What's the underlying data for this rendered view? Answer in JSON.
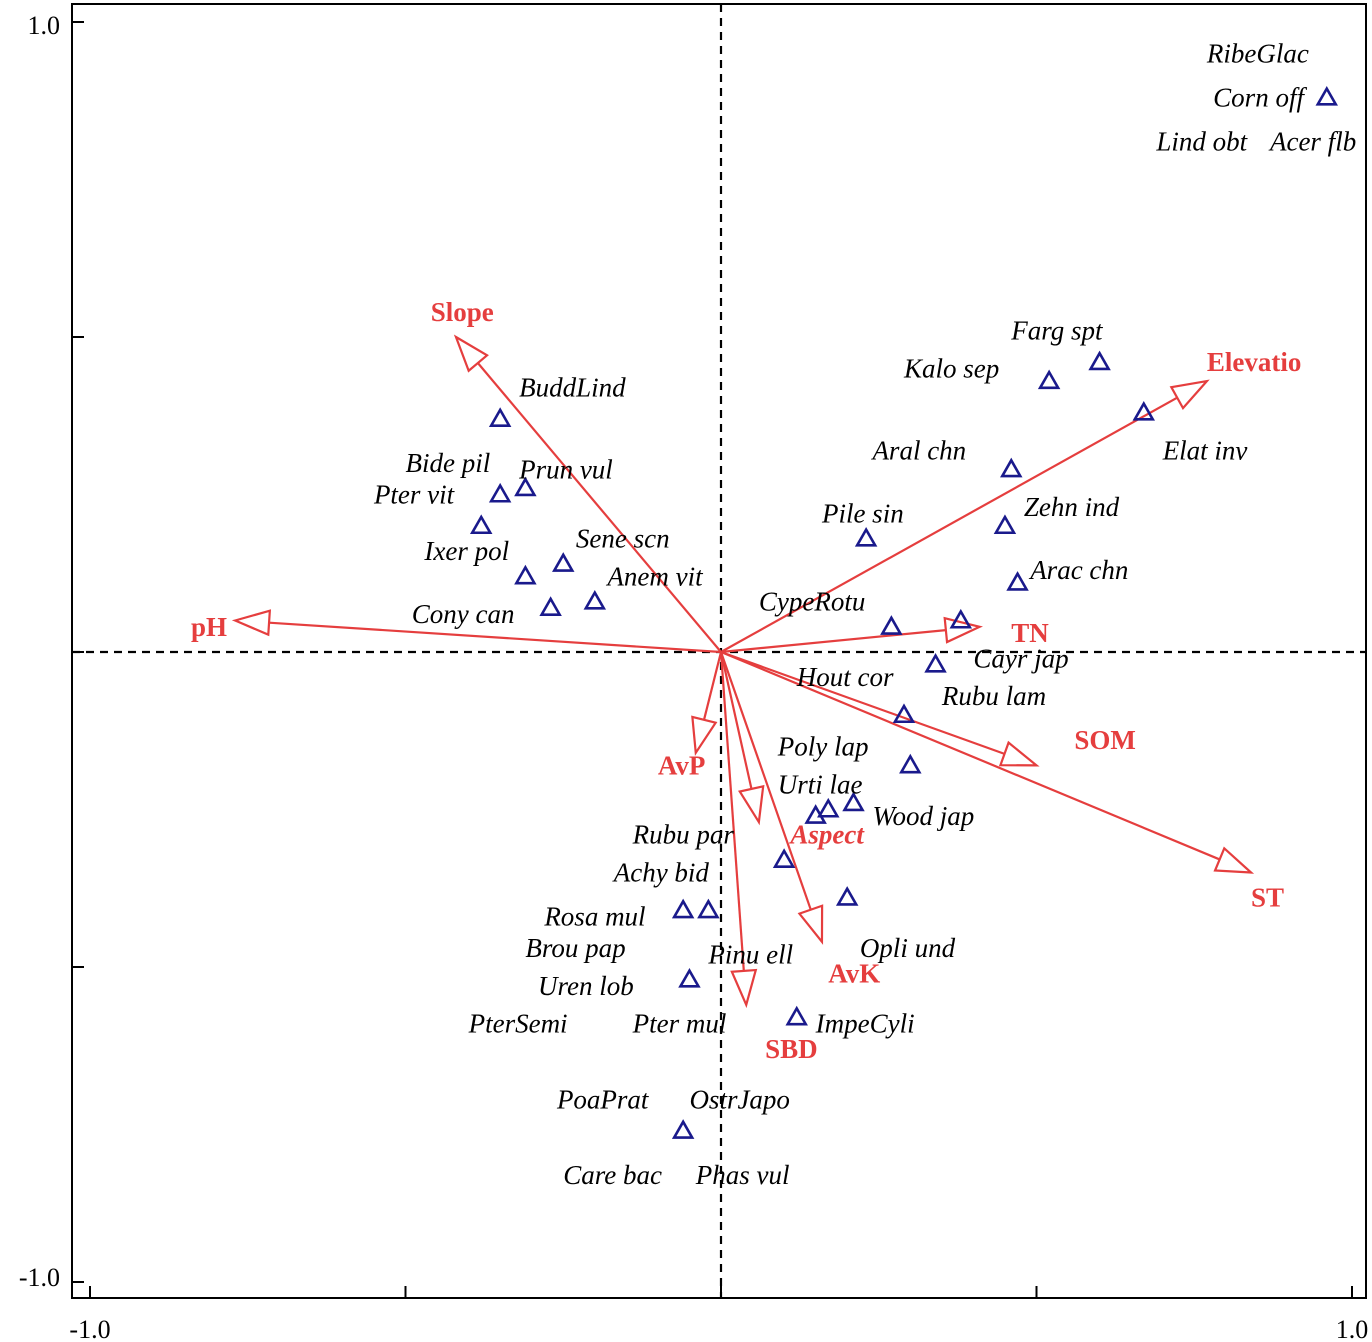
{
  "chart_data": {
    "type": "scatter",
    "title": "",
    "xlabel": "",
    "ylabel": "",
    "xlim": [
      -1.0,
      1.0
    ],
    "ylim": [
      -1.0,
      1.0
    ],
    "grid": false,
    "x_tick_labels": [
      "-1.0",
      "1.0"
    ],
    "y_tick_labels": [
      "1.0",
      "-1.0"
    ],
    "x_ticks": [
      -1.0,
      -0.5,
      0.0,
      0.5,
      1.0
    ],
    "y_ticks": [
      -1.0,
      -0.5,
      0.0,
      0.5,
      1.0
    ],
    "zero_lines": true,
    "colors": {
      "arrow": "#e53e3e",
      "marker": "#1a1a8c",
      "axis": "#000000"
    },
    "environment_vectors": [
      {
        "name": "Slope",
        "x": -0.42,
        "y": 0.5,
        "lx": -0.46,
        "ly": 0.54,
        "italic": false
      },
      {
        "name": "pH",
        "x": -0.77,
        "y": 0.05,
        "lx": -0.84,
        "ly": 0.04,
        "italic": false
      },
      {
        "name": "Elevatio",
        "x": 0.77,
        "y": 0.43,
        "lx": 0.77,
        "ly": 0.46,
        "italic": false
      },
      {
        "name": "TN",
        "x": 0.41,
        "y": 0.04,
        "lx": 0.46,
        "ly": 0.03,
        "italic": false
      },
      {
        "name": "SOM",
        "x": 0.5,
        "y": -0.18,
        "lx": 0.56,
        "ly": -0.14,
        "italic": false
      },
      {
        "name": "ST",
        "x": 0.84,
        "y": -0.35,
        "lx": 0.84,
        "ly": -0.39,
        "italic": false
      },
      {
        "name": "AvP",
        "x": -0.04,
        "y": -0.16,
        "lx": -0.1,
        "ly": -0.18,
        "italic": false
      },
      {
        "name": "Aspect",
        "x": 0.06,
        "y": -0.27,
        "lx": 0.11,
        "ly": -0.29,
        "italic": true
      },
      {
        "name": "AvK",
        "x": 0.16,
        "y": -0.46,
        "lx": 0.17,
        "ly": -0.51,
        "italic": false
      },
      {
        "name": "SBD",
        "x": 0.04,
        "y": -0.56,
        "lx": 0.07,
        "ly": -0.63,
        "italic": false
      }
    ],
    "species_points": [
      {
        "x": 0.96,
        "y": 0.88
      },
      {
        "x": 0.6,
        "y": 0.46
      },
      {
        "x": 0.52,
        "y": 0.43
      },
      {
        "x": 0.67,
        "y": 0.38
      },
      {
        "x": 0.46,
        "y": 0.29
      },
      {
        "x": 0.45,
        "y": 0.2
      },
      {
        "x": 0.23,
        "y": 0.18
      },
      {
        "x": 0.47,
        "y": 0.11
      },
      {
        "x": 0.27,
        "y": 0.04
      },
      {
        "x": 0.38,
        "y": 0.05
      },
      {
        "x": 0.34,
        "y": -0.02
      },
      {
        "x": 0.29,
        "y": -0.1
      },
      {
        "x": 0.3,
        "y": -0.18
      },
      {
        "x": 0.21,
        "y": -0.24
      },
      {
        "x": 0.17,
        "y": -0.25
      },
      {
        "x": 0.15,
        "y": -0.26
      },
      {
        "x": 0.1,
        "y": -0.33
      },
      {
        "x": 0.2,
        "y": -0.39
      },
      {
        "x": -0.06,
        "y": -0.41
      },
      {
        "x": -0.02,
        "y": -0.41
      },
      {
        "x": -0.05,
        "y": -0.52
      },
      {
        "x": 0.12,
        "y": -0.58
      },
      {
        "x": -0.06,
        "y": -0.76
      },
      {
        "x": -0.35,
        "y": 0.37
      },
      {
        "x": -0.31,
        "y": 0.26
      },
      {
        "x": -0.35,
        "y": 0.25
      },
      {
        "x": -0.38,
        "y": 0.2
      },
      {
        "x": -0.25,
        "y": 0.14
      },
      {
        "x": -0.31,
        "y": 0.12
      },
      {
        "x": -0.2,
        "y": 0.08
      },
      {
        "x": -0.27,
        "y": 0.07
      }
    ],
    "species_labels": [
      {
        "text": "RibeGlac",
        "x": 0.77,
        "y": 0.95
      },
      {
        "text": "Corn off",
        "x": 0.78,
        "y": 0.88
      },
      {
        "text": "Lind obt",
        "x": 0.69,
        "y": 0.81
      },
      {
        "text": "Acer flb",
        "x": 0.87,
        "y": 0.81
      },
      {
        "text": "Farg spt",
        "x": 0.46,
        "y": 0.51
      },
      {
        "text": "Kalo sep",
        "x": 0.29,
        "y": 0.45
      },
      {
        "text": "Elat inv",
        "x": 0.7,
        "y": 0.32
      },
      {
        "text": "Aral chn",
        "x": 0.24,
        "y": 0.32
      },
      {
        "text": "Zehn ind",
        "x": 0.48,
        "y": 0.23
      },
      {
        "text": "Pile sin",
        "x": 0.16,
        "y": 0.22
      },
      {
        "text": "Arac chn",
        "x": 0.49,
        "y": 0.13
      },
      {
        "text": "CypeRotu",
        "x": 0.06,
        "y": 0.08
      },
      {
        "text": "Cayr jap",
        "x": 0.4,
        "y": -0.01
      },
      {
        "text": "Hout cor",
        "x": 0.12,
        "y": -0.04
      },
      {
        "text": "Rubu lam",
        "x": 0.35,
        "y": -0.07
      },
      {
        "text": "Poly lap",
        "x": 0.09,
        "y": -0.15
      },
      {
        "text": "Urti lae",
        "x": 0.09,
        "y": -0.21
      },
      {
        "text": "Wood jap",
        "x": 0.24,
        "y": -0.26
      },
      {
        "text": "Rubu par",
        "x": -0.14,
        "y": -0.29
      },
      {
        "text": "Achy bid",
        "x": -0.17,
        "y": -0.35
      },
      {
        "text": "Rosa mul",
        "x": -0.28,
        "y": -0.42
      },
      {
        "text": "Opli und",
        "x": 0.22,
        "y": -0.47
      },
      {
        "text": "Brou pap",
        "x": -0.31,
        "y": -0.47
      },
      {
        "text": "Pinu ell",
        "x": -0.02,
        "y": -0.48
      },
      {
        "text": "Uren lob",
        "x": -0.29,
        "y": -0.53
      },
      {
        "text": "PterSemi",
        "x": -0.4,
        "y": -0.59
      },
      {
        "text": "Pter mul",
        "x": -0.14,
        "y": -0.59
      },
      {
        "text": "ImpeCyli",
        "x": 0.15,
        "y": -0.59
      },
      {
        "text": "PoaPrat",
        "x": -0.26,
        "y": -0.71
      },
      {
        "text": "OstrJapo",
        "x": -0.05,
        "y": -0.71
      },
      {
        "text": "Care bac",
        "x": -0.25,
        "y": -0.83
      },
      {
        "text": "Phas vul",
        "x": -0.04,
        "y": -0.83
      },
      {
        "text": "BuddLind",
        "x": -0.32,
        "y": 0.42
      },
      {
        "text": "Bide pil",
        "x": -0.5,
        "y": 0.3
      },
      {
        "text": "Prun vul",
        "x": -0.32,
        "y": 0.29
      },
      {
        "text": "Pter vit",
        "x": -0.55,
        "y": 0.25
      },
      {
        "text": "Ixer pol",
        "x": -0.47,
        "y": 0.16
      },
      {
        "text": "Sene scn",
        "x": -0.23,
        "y": 0.18
      },
      {
        "text": "Anem vit",
        "x": -0.18,
        "y": 0.12
      },
      {
        "text": "Cony can",
        "x": -0.49,
        "y": 0.06
      }
    ]
  }
}
